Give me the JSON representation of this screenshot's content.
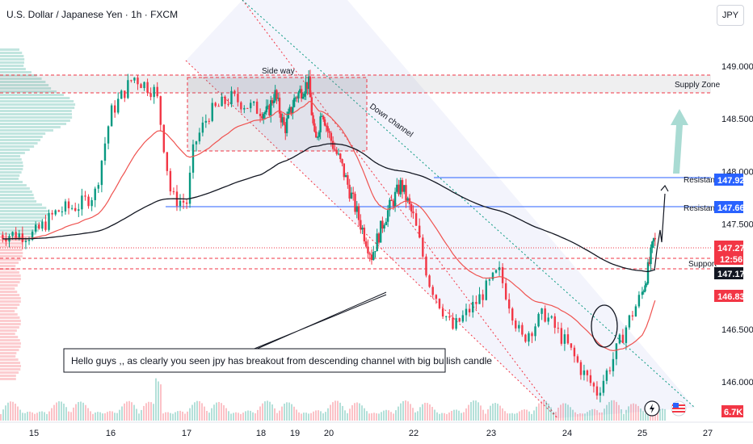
{
  "header": {
    "title": "U.S. Dollar / Japanese Yen · 1h · FXCM",
    "currency_button": "JPY"
  },
  "colors": {
    "bull": "#089981",
    "bear": "#f23645",
    "ema_fast": "#ef5350",
    "ema_slow": "#131722",
    "blue_line": "#2962ff",
    "zone_dash": "#f23645"
  },
  "chart_data": {
    "type": "candlestick",
    "y_axis": {
      "ticks": [
        "149.000",
        "148.500",
        "148.000",
        "147.500",
        "146.500",
        "146.000"
      ],
      "range": [
        145.82,
        149.3
      ]
    },
    "x_axis": {
      "ticks": [
        "15",
        "16",
        "17",
        "18",
        "19",
        "20",
        "22",
        "23",
        "24",
        "25",
        "27"
      ]
    },
    "ohlc_path_points": [
      [
        15.0,
        147.4
      ],
      [
        15.3,
        147.62
      ],
      [
        15.6,
        147.68
      ],
      [
        15.8,
        147.8
      ],
      [
        16.0,
        148.55
      ],
      [
        16.3,
        148.9
      ],
      [
        16.5,
        148.8
      ],
      [
        16.6,
        148.75
      ],
      [
        16.8,
        147.75
      ],
      [
        17.0,
        147.7
      ],
      [
        17.1,
        148.25
      ],
      [
        17.3,
        148.55
      ],
      [
        17.6,
        148.7
      ],
      [
        17.9,
        148.6
      ],
      [
        18.2,
        148.55
      ],
      [
        18.4,
        148.75
      ],
      [
        18.7,
        148.4
      ],
      [
        19.0,
        148.7
      ],
      [
        19.4,
        148.85
      ],
      [
        19.6,
        148.25
      ],
      [
        19.8,
        148.6
      ],
      [
        20.0,
        148.35
      ],
      [
        20.3,
        148.05
      ],
      [
        20.7,
        147.55
      ],
      [
        21.0,
        147.2
      ],
      [
        21.3,
        147.55
      ],
      [
        21.7,
        147.88
      ],
      [
        22.0,
        147.55
      ],
      [
        22.2,
        146.95
      ],
      [
        22.5,
        146.5
      ],
      [
        22.8,
        146.75
      ],
      [
        23.1,
        147.05
      ],
      [
        23.4,
        146.4
      ],
      [
        23.7,
        146.65
      ],
      [
        24.0,
        146.35
      ],
      [
        24.2,
        146.1
      ],
      [
        24.4,
        145.9
      ],
      [
        24.6,
        146.2
      ],
      [
        24.8,
        146.55
      ],
      [
        25.0,
        146.85
      ],
      [
        25.2,
        147.1
      ],
      [
        25.35,
        147.35
      ],
      [
        25.5,
        147.25
      ]
    ],
    "indicators": [
      {
        "name": "EMA (short)",
        "color": "#ef5350"
      },
      {
        "name": "EMA (long)",
        "color": "#131722"
      }
    ],
    "price_labels": [
      {
        "value": "147.924",
        "style": "blue"
      },
      {
        "value": "147.666",
        "style": "blue"
      },
      {
        "value": "147.276",
        "style": "red"
      },
      {
        "value": "12:56",
        "style": "red"
      },
      {
        "value": "147.172",
        "style": "black"
      },
      {
        "value": "146.832",
        "style": "red"
      },
      {
        "value": "6.7K",
        "style": "red"
      }
    ],
    "annotations": {
      "side_way": "Side way",
      "supply_zone": "Supply Zone",
      "down_channel": "Down channel",
      "resistance_1": "Resistance",
      "resistance_2": "Resistance",
      "support": "Support",
      "note": "Hello guys ,, as clearly you seen jpy has breakout from descending channel with big bullish candle"
    }
  }
}
